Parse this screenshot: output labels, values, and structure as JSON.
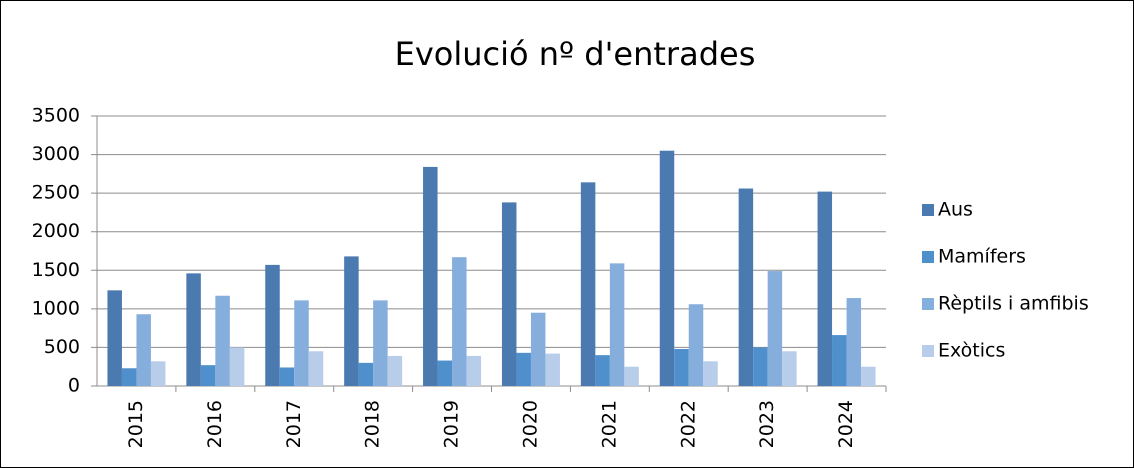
{
  "chart_data": {
    "type": "bar",
    "title": "Evolució nº d'entrades",
    "categories": [
      "2015",
      "2016",
      "2017",
      "2018",
      "2019",
      "2020",
      "2021",
      "2022",
      "2023",
      "2024"
    ],
    "series": [
      {
        "name": "Aus",
        "color": "#4a7ab0",
        "values": [
          1240,
          1460,
          1570,
          1680,
          2840,
          2380,
          2640,
          3050,
          2560,
          2520
        ]
      },
      {
        "name": "Mamífers",
        "color": "#4f8fcc",
        "values": [
          230,
          270,
          240,
          300,
          330,
          430,
          400,
          480,
          500,
          660
        ]
      },
      {
        "name": "Rèptils i amfibis",
        "color": "#86aedd",
        "values": [
          930,
          1170,
          1110,
          1110,
          1670,
          950,
          1590,
          1060,
          1490,
          1140
        ]
      },
      {
        "name": "Exòtics",
        "color": "#b8cde9",
        "values": [
          320,
          500,
          450,
          390,
          390,
          420,
          250,
          320,
          450,
          250
        ]
      }
    ],
    "ylim": [
      0,
      3500
    ],
    "yticks": [
      0,
      500,
      1000,
      1500,
      2000,
      2500,
      3000,
      3500
    ],
    "grid": true,
    "legend": "right"
  }
}
